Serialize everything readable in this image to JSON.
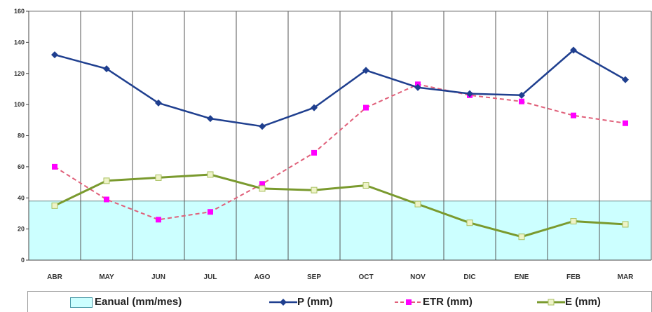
{
  "chart_data": {
    "type": "line",
    "categories": [
      "ABR",
      "MAY",
      "JUN",
      "JUL",
      "AGO",
      "SEP",
      "OCT",
      "NOV",
      "DIC",
      "ENE",
      "FEB",
      "MAR"
    ],
    "ylim": [
      0,
      160
    ],
    "yticks": [
      0,
      20,
      40,
      60,
      80,
      100,
      120,
      140,
      160
    ],
    "grid": "vertical",
    "legend_position": "bottom",
    "title": "",
    "xlabel": "",
    "ylabel": "",
    "band": {
      "name": "Eanual (mm/mes)",
      "value": 38,
      "color": "#ccffff"
    },
    "series": [
      {
        "name": "P (mm)",
        "values": [
          132,
          123,
          101,
          91,
          86,
          98,
          122,
          111,
          107,
          106,
          135,
          116
        ],
        "color": "#1f3f8f",
        "style": "solid",
        "marker": "diamond"
      },
      {
        "name": "ETR (mm)",
        "values": [
          60,
          39,
          26,
          31,
          49,
          69,
          98,
          113,
          106,
          102,
          93,
          88
        ],
        "color": "#e0607a",
        "marker_color": "#ff00ff",
        "style": "dashed",
        "marker": "square"
      },
      {
        "name": "E (mm)",
        "values": [
          35,
          51,
          53,
          55,
          46,
          45,
          48,
          36,
          24,
          15,
          25,
          23
        ],
        "color": "#7a9a2e",
        "style": "solid",
        "marker": "square-hollow"
      }
    ]
  }
}
